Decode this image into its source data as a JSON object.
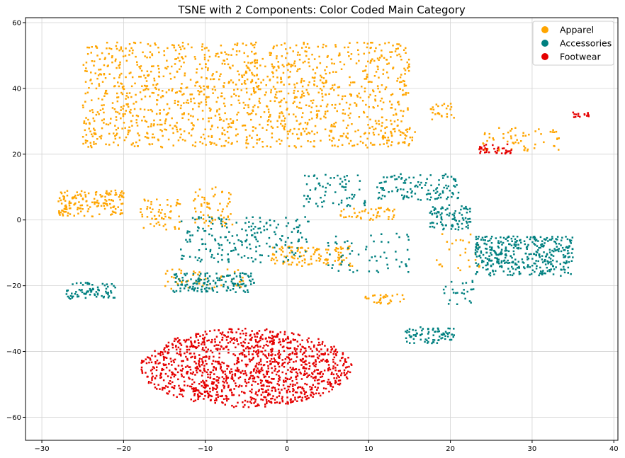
{
  "chart_data": {
    "type": "scatter",
    "title": "TSNE with 2 Components: Color Coded Main Category",
    "xlabel": "",
    "ylabel": "",
    "xlim": [
      -32,
      40.5
    ],
    "ylim": [
      -67,
      61.5
    ],
    "x_ticks": [
      -30,
      -20,
      -10,
      0,
      10,
      20,
      30,
      40
    ],
    "y_ticks": [
      -60,
      -40,
      -20,
      0,
      20,
      40,
      60
    ],
    "x_tick_labels": [
      "−30",
      "−20",
      "−10",
      "0",
      "10",
      "20",
      "30",
      "40"
    ],
    "y_tick_labels": [
      "−60",
      "−40",
      "−20",
      "0",
      "20",
      "40",
      "60"
    ],
    "grid": true,
    "legend_position": "top-right",
    "series": [
      {
        "name": "Apparel",
        "color": "#FFA500",
        "clusters": [
          {
            "cx": -5,
            "cy": 38,
            "sx": 20,
            "sy": 16,
            "n": 1400,
            "shape": "uniform"
          },
          {
            "cx": -24,
            "cy": 5,
            "sx": 4,
            "sy": 4,
            "n": 160,
            "shape": "uniform"
          },
          {
            "cx": -15.5,
            "cy": 2,
            "sx": 2.5,
            "sy": 5,
            "n": 60,
            "shape": "uniform"
          },
          {
            "cx": -9,
            "cy": 4,
            "sx": 2.5,
            "sy": 6,
            "n": 60,
            "shape": "uniform"
          },
          {
            "cx": 3,
            "cy": -11,
            "sx": 5,
            "sy": 3,
            "n": 120,
            "shape": "uniform"
          },
          {
            "cx": 10,
            "cy": 2,
            "sx": 3.5,
            "sy": 2,
            "n": 45,
            "shape": "uniform"
          },
          {
            "cx": -10,
            "cy": -18,
            "sx": 5,
            "sy": 3,
            "n": 50,
            "shape": "uniform"
          },
          {
            "cx": 12,
            "cy": -24,
            "sx": 2.5,
            "sy": 1.5,
            "n": 30,
            "shape": "uniform"
          },
          {
            "cx": 14,
            "cy": 26,
            "sx": 2,
            "sy": 2,
            "n": 20,
            "shape": "uniform"
          },
          {
            "cx": 19,
            "cy": 33,
            "sx": 1.5,
            "sy": 2.5,
            "n": 25,
            "shape": "uniform"
          },
          {
            "cx": 28.5,
            "cy": 24.5,
            "sx": 5,
            "sy": 3.5,
            "n": 60,
            "shape": "uniform"
          },
          {
            "cx": 21,
            "cy": -10,
            "sx": 3,
            "sy": 6,
            "n": 25,
            "shape": "uniform"
          }
        ]
      },
      {
        "name": "Accessories",
        "color": "#008080",
        "clusters": [
          {
            "cx": 29,
            "cy": -11,
            "sx": 6,
            "sy": 6,
            "n": 400,
            "shape": "uniform"
          },
          {
            "cx": 16,
            "cy": 10,
            "sx": 5,
            "sy": 4,
            "n": 120,
            "shape": "uniform"
          },
          {
            "cx": 6,
            "cy": 9,
            "sx": 4,
            "sy": 5,
            "n": 70,
            "shape": "uniform"
          },
          {
            "cx": 20,
            "cy": 1,
            "sx": 2.5,
            "sy": 4,
            "n": 90,
            "shape": "uniform"
          },
          {
            "cx": -24,
            "cy": -21.5,
            "sx": 3,
            "sy": 2.5,
            "n": 80,
            "shape": "uniform"
          },
          {
            "cx": -9,
            "cy": -19,
            "sx": 5,
            "sy": 3,
            "n": 150,
            "shape": "uniform"
          },
          {
            "cx": -5,
            "cy": -6,
            "sx": 8,
            "sy": 7,
            "n": 200,
            "shape": "uniform"
          },
          {
            "cx": 17.5,
            "cy": -35,
            "sx": 3,
            "sy": 2.5,
            "n": 80,
            "shape": "uniform"
          },
          {
            "cx": 10,
            "cy": -10,
            "sx": 5,
            "sy": 6,
            "n": 60,
            "shape": "uniform"
          },
          {
            "cx": 21,
            "cy": -22,
            "sx": 2,
            "sy": 4,
            "n": 25,
            "shape": "uniform"
          }
        ]
      },
      {
        "name": "Footwear",
        "color": "#E50000",
        "clusters": [
          {
            "cx": -5,
            "cy": -45,
            "sx": 13,
            "sy": 12,
            "n": 1300,
            "shape": "ellipse"
          },
          {
            "cx": 25.5,
            "cy": 21.5,
            "sx": 2,
            "sy": 1.5,
            "n": 40,
            "shape": "uniform"
          },
          {
            "cx": 36,
            "cy": 32,
            "sx": 1,
            "sy": 0.8,
            "n": 15,
            "shape": "uniform"
          }
        ]
      }
    ]
  }
}
